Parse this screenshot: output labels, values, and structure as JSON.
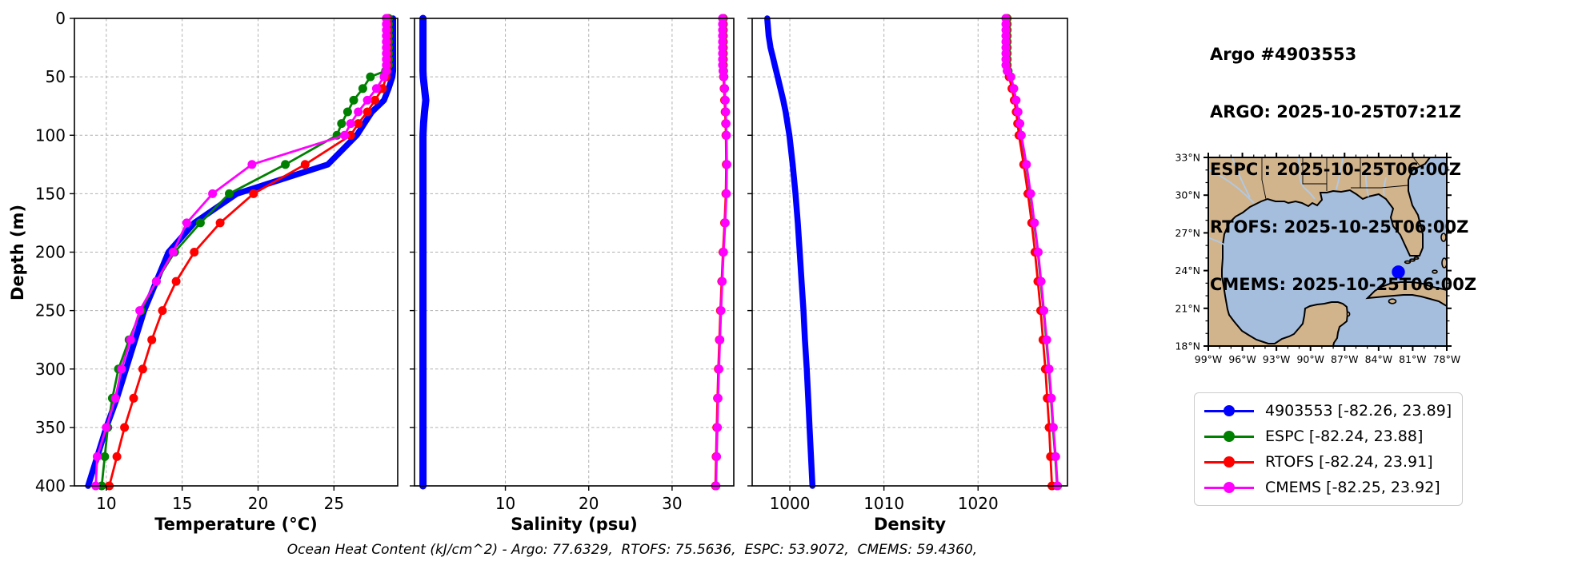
{
  "header": {
    "title": "Argo #4903553",
    "lines": [
      "ARGO: 2025-10-25T07:21Z",
      "ESPC : 2025-10-25T06:00Z",
      "RTOFS: 2025-10-25T06:00Z",
      "CMEMS: 2025-10-25T06:00Z"
    ]
  },
  "footer": {
    "ohc_note": "Ocean Heat Content (kJ/cm^2) - Argo: 77.6329,  RTOFS: 75.5636,  ESPC: 53.9072,  CMEMS: 59.4360,"
  },
  "legend": {
    "items": [
      {
        "label": "4903553 [-82.26, 23.89]",
        "color": "#0000ff"
      },
      {
        "label": "ESPC [-82.24, 23.88]",
        "color": "#008000"
      },
      {
        "label": "RTOFS [-82.24, 23.91]",
        "color": "#ff0000"
      },
      {
        "label": "CMEMS [-82.25, 23.92]",
        "color": "#ff00ff"
      }
    ]
  },
  "map": {
    "lat_ticks": [
      33,
      30,
      27,
      24,
      21,
      18
    ],
    "lat_labels": [
      "33°N",
      "30°N",
      "27°N",
      "24°N",
      "21°N",
      "18°N"
    ],
    "lon_ticks": [
      -99,
      -96,
      -93,
      -90,
      -87,
      -84,
      -81,
      -78
    ],
    "lon_labels": [
      "99°W",
      "96°W",
      "93°W",
      "90°W",
      "87°W",
      "84°W",
      "81°W",
      "78°W"
    ],
    "extent": {
      "lon_min": -99,
      "lon_max": -78,
      "lat_min": 18,
      "lat_max": 33
    },
    "marker": {
      "lon": -82.26,
      "lat": 23.89,
      "color": "#0000ff"
    },
    "colors": {
      "land": "#d2b48c",
      "ocean": "#a5bedd",
      "river": "#aec9e8",
      "coast": "#000000"
    }
  },
  "chart_data": {
    "type": "line",
    "profile": "ocean-depth-profiles",
    "ylabel": "Depth (m)",
    "ylim": [
      0,
      400
    ],
    "yticks": [
      0,
      50,
      100,
      150,
      200,
      250,
      300,
      350,
      400
    ],
    "grid": true,
    "depths": [
      0,
      5,
      10,
      15,
      20,
      25,
      30,
      35,
      40,
      45,
      50,
      60,
      70,
      80,
      90,
      100,
      125,
      150,
      175,
      200,
      225,
      250,
      275,
      300,
      325,
      350,
      375,
      400
    ],
    "panels": [
      {
        "xlabel": "Temperature (°C)",
        "xlim": [
          7.9,
          29.2
        ],
        "xticks": [
          10,
          15,
          20,
          25
        ],
        "series": [
          {
            "name": "4903553",
            "color": "#0000ff",
            "line_width": 7.5,
            "markers": false,
            "values": [
              28.9,
              28.9,
              28.9,
              28.9,
              28.9,
              28.9,
              28.9,
              28.9,
              28.9,
              28.9,
              28.85,
              28.6,
              28.3,
              27.5,
              27.0,
              26.5,
              24.6,
              18.6,
              15.8,
              14.1,
              13.3,
              12.5,
              11.9,
              11.3,
              10.7,
              10.0,
              9.4,
              8.8
            ]
          },
          {
            "name": "ESPC",
            "color": "#008000",
            "line_width": 2.8,
            "markers": true,
            "values": [
              28.6,
              28.6,
              28.6,
              28.6,
              28.6,
              28.6,
              28.6,
              28.6,
              28.6,
              28.4,
              27.4,
              26.9,
              26.3,
              25.9,
              25.5,
              25.2,
              21.8,
              18.1,
              16.2,
              14.5,
              13.3,
              12.3,
              11.5,
              10.8,
              10.4,
              10.1,
              9.9,
              9.7
            ]
          },
          {
            "name": "RTOFS",
            "color": "#ff0000",
            "line_width": 2.8,
            "markers": true,
            "values": [
              28.5,
              28.5,
              28.5,
              28.5,
              28.5,
              28.5,
              28.5,
              28.5,
              28.5,
              28.5,
              28.45,
              28.2,
              27.7,
              27.2,
              26.6,
              26.1,
              23.1,
              19.7,
              17.5,
              15.8,
              14.6,
              13.7,
              13.0,
              12.4,
              11.8,
              11.2,
              10.7,
              10.2
            ]
          },
          {
            "name": "CMEMS",
            "color": "#ff00ff",
            "line_width": 2.8,
            "markers": true,
            "values": [
              28.45,
              28.45,
              28.45,
              28.45,
              28.45,
              28.45,
              28.45,
              28.45,
              28.45,
              28.45,
              28.3,
              27.8,
              27.2,
              26.6,
              26.1,
              25.7,
              19.6,
              17.0,
              15.3,
              14.4,
              13.3,
              12.2,
              11.6,
              11.0,
              10.6,
              10.0,
              9.4,
              9.3
            ]
          }
        ]
      },
      {
        "xlabel": "Salinity (psu)",
        "xlim": [
          -0.9,
          37.4
        ],
        "xticks": [
          10,
          20,
          30
        ],
        "series": [
          {
            "name": "4903553",
            "color": "#0000ff",
            "line_width": 9,
            "markers": false,
            "values": [
              0.12,
              0.12,
              0.12,
              0.12,
              0.12,
              0.12,
              0.12,
              0.12,
              0.12,
              0.12,
              0.15,
              0.3,
              0.45,
              0.3,
              0.18,
              0.12,
              0.12,
              0.12,
              0.12,
              0.12,
              0.12,
              0.12,
              0.12,
              0.12,
              0.12,
              0.12,
              0.12,
              0.12
            ]
          },
          {
            "name": "ESPC",
            "color": "#008000",
            "line_width": 2.8,
            "markers": true,
            "values": [
              36.15,
              36.15,
              36.15,
              36.15,
              36.15,
              36.15,
              36.15,
              36.15,
              36.15,
              36.18,
              36.22,
              36.3,
              36.36,
              36.42,
              36.46,
              36.5,
              36.55,
              36.5,
              36.35,
              36.15,
              36.0,
              35.85,
              35.72,
              35.6,
              35.5,
              35.42,
              35.33,
              35.25
            ]
          },
          {
            "name": "RTOFS",
            "color": "#ff0000",
            "line_width": 2.8,
            "markers": true,
            "values": [
              36.1,
              36.1,
              36.1,
              36.1,
              36.1,
              36.1,
              36.1,
              36.1,
              36.1,
              36.12,
              36.16,
              36.24,
              36.3,
              36.36,
              36.42,
              36.46,
              36.5,
              36.45,
              36.3,
              36.1,
              35.95,
              35.8,
              35.67,
              35.55,
              35.45,
              35.36,
              35.28,
              35.2
            ]
          },
          {
            "name": "CMEMS",
            "color": "#ff00ff",
            "line_width": 2.8,
            "markers": true,
            "values": [
              36.05,
              36.05,
              36.05,
              36.05,
              36.05,
              36.05,
              36.05,
              36.05,
              36.05,
              36.1,
              36.2,
              36.3,
              36.38,
              36.44,
              36.48,
              36.52,
              36.57,
              36.52,
              36.37,
              36.17,
              36.02,
              35.87,
              35.74,
              35.62,
              35.52,
              35.44,
              35.35,
              35.27
            ]
          }
        ]
      },
      {
        "xlabel": "Density",
        "xlim": [
          996.0,
          1029.5
        ],
        "xticks": [
          1000,
          1010,
          1020
        ],
        "series": [
          {
            "name": "4903553",
            "color": "#0000ff",
            "line_width": 7.5,
            "markers": false,
            "values": [
              997.6,
              997.65,
              997.7,
              997.75,
              997.85,
              997.95,
              998.1,
              998.25,
              998.4,
              998.55,
              998.7,
              999.0,
              999.3,
              999.55,
              999.75,
              999.95,
              1000.3,
              1000.6,
              1000.85,
              1001.05,
              1001.25,
              1001.45,
              1001.6,
              1001.8,
              1001.95,
              1002.1,
              1002.25,
              1002.4
            ]
          },
          {
            "name": "ESPC",
            "color": "#008000",
            "line_width": 2.8,
            "markers": true,
            "values": [
              1023.1,
              1023.1,
              1023.1,
              1023.1,
              1023.1,
              1023.1,
              1023.1,
              1023.1,
              1023.1,
              1023.2,
              1023.45,
              1023.75,
              1024.0,
              1024.2,
              1024.4,
              1024.55,
              1025.1,
              1025.55,
              1025.95,
              1026.35,
              1026.65,
              1026.95,
              1027.25,
              1027.5,
              1027.75,
              1027.95,
              1028.2,
              1028.4
            ]
          },
          {
            "name": "RTOFS",
            "color": "#ff0000",
            "line_width": 2.8,
            "markers": true,
            "values": [
              1023.0,
              1023.0,
              1023.0,
              1023.0,
              1023.0,
              1023.0,
              1023.0,
              1023.0,
              1023.0,
              1023.1,
              1023.3,
              1023.6,
              1023.85,
              1024.05,
              1024.2,
              1024.35,
              1024.85,
              1025.3,
              1025.7,
              1026.05,
              1026.35,
              1026.65,
              1026.9,
              1027.15,
              1027.35,
              1027.55,
              1027.7,
              1027.85
            ]
          },
          {
            "name": "CMEMS",
            "color": "#ff00ff",
            "line_width": 2.8,
            "markers": true,
            "values": [
              1022.95,
              1022.95,
              1022.95,
              1022.95,
              1022.95,
              1022.95,
              1022.95,
              1022.95,
              1022.95,
              1023.1,
              1023.5,
              1023.8,
              1024.05,
              1024.25,
              1024.45,
              1024.6,
              1025.15,
              1025.6,
              1026.0,
              1026.4,
              1026.7,
              1027.0,
              1027.3,
              1027.55,
              1027.8,
              1028.0,
              1028.25,
              1028.45
            ]
          }
        ]
      }
    ]
  }
}
